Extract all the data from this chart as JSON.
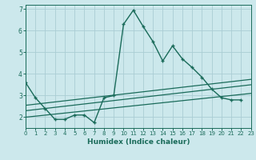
{
  "title": "",
  "xlabel": "Humidex (Indice chaleur)",
  "bg_color": "#cce8ec",
  "grid_color": "#aacdd4",
  "line_color": "#1a6b5a",
  "xmin": 0,
  "xmax": 23,
  "ymin": 1.5,
  "ymax": 7.2,
  "yticks": [
    2,
    3,
    4,
    5,
    6,
    7
  ],
  "xticks": [
    0,
    1,
    2,
    3,
    4,
    5,
    6,
    7,
    8,
    9,
    10,
    11,
    12,
    13,
    14,
    15,
    16,
    17,
    18,
    19,
    20,
    21,
    22,
    23
  ],
  "series1_x": [
    0,
    1,
    2,
    3,
    4,
    5,
    6,
    7,
    8,
    9,
    10,
    11,
    12,
    13,
    14,
    15,
    16,
    17,
    18,
    19,
    20,
    21,
    22
  ],
  "series1_y": [
    3.6,
    2.9,
    2.4,
    1.9,
    1.9,
    2.1,
    2.1,
    1.75,
    2.9,
    3.0,
    6.3,
    6.95,
    6.2,
    5.5,
    4.6,
    5.3,
    4.7,
    4.3,
    3.85,
    3.3,
    2.9,
    2.8,
    2.8
  ],
  "line1_x": [
    0,
    23
  ],
  "line1_y": [
    2.55,
    3.75
  ],
  "line2_x": [
    0,
    23
  ],
  "line2_y": [
    2.3,
    3.5
  ],
  "line3_x": [
    0,
    23
  ],
  "line3_y": [
    2.0,
    3.1
  ]
}
